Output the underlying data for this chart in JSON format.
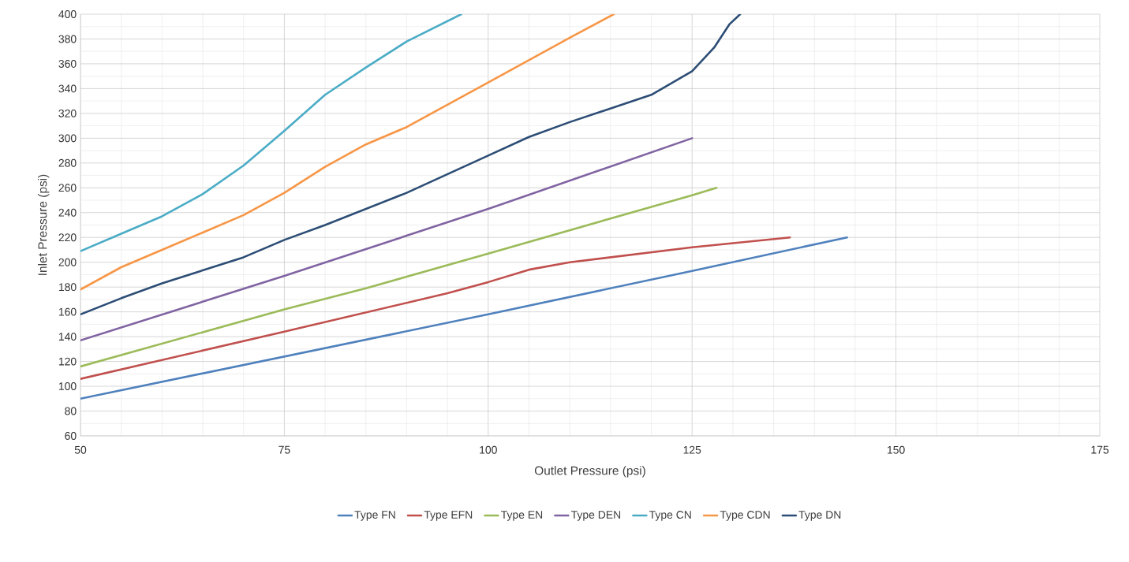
{
  "chart_data": {
    "type": "line",
    "xlabel": "Outlet Pressure (psi)",
    "ylabel": "Inlet Pressure (psi)",
    "xlim": [
      50,
      175
    ],
    "xticks": [
      50,
      75,
      100,
      125,
      150,
      175
    ],
    "ylim": [
      60,
      400
    ],
    "yticks": [
      60,
      80,
      100,
      120,
      140,
      160,
      180,
      200,
      220,
      240,
      260,
      280,
      300,
      320,
      340,
      360,
      380,
      400
    ],
    "grid": true,
    "legend": "bottom",
    "marker": "none",
    "line_style": "solid",
    "series": [
      {
        "name": "Type FN",
        "color": "#4f81bd",
        "x": [
          50,
          75,
          100,
          125,
          144
        ],
        "values": [
          90,
          124,
          158,
          193,
          220
        ]
      },
      {
        "name": "Type EFN",
        "color": "#c0504d",
        "x": [
          50,
          75,
          95,
          100,
          105,
          110,
          125,
          137
        ],
        "values": [
          106,
          144,
          175,
          184,
          194,
          200,
          212,
          220
        ]
      },
      {
        "name": "Type EN",
        "color": "#9bbb59",
        "x": [
          50,
          75,
          85,
          100,
          125,
          128
        ],
        "values": [
          116,
          162,
          179,
          207,
          254,
          260
        ]
      },
      {
        "name": "Type DEN",
        "color": "#8064a2",
        "x": [
          50,
          75,
          100,
          125
        ],
        "values": [
          137,
          189,
          243,
          300
        ]
      },
      {
        "name": "Type CN",
        "color": "#4bacc6",
        "x": [
          50,
          55,
          60,
          65,
          70,
          75,
          80,
          85,
          90,
          96.7
        ],
        "values": [
          209,
          223,
          237,
          255,
          278,
          306,
          335,
          357,
          378,
          400
        ]
      },
      {
        "name": "Type CDN",
        "color": "#f79646",
        "x": [
          50,
          55,
          60,
          65,
          70,
          75,
          80,
          85,
          90,
          100,
          110,
          115.4
        ],
        "values": [
          178,
          196,
          210,
          224,
          238,
          256,
          277,
          295,
          309,
          345,
          381,
          400
        ]
      },
      {
        "name": "Type DN",
        "color": "#2c4d75",
        "x": [
          50,
          55,
          60,
          70,
          75,
          80,
          90,
          100,
          105,
          110,
          120,
          125,
          127.7,
          129.6,
          130.9
        ],
        "values": [
          158,
          171,
          183,
          204,
          218,
          230,
          256,
          286,
          301,
          313,
          335,
          354,
          373,
          392,
          400
        ]
      }
    ]
  }
}
